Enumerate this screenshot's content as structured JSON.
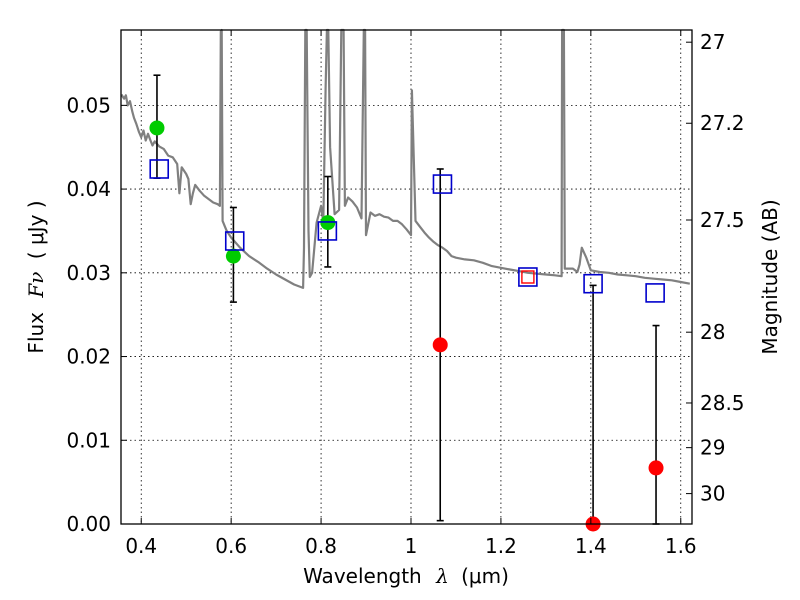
{
  "chart_data": {
    "type": "scatter",
    "xlabel_text": "Wavelength",
    "xlabel_symbol": "λ",
    "xlabel_unit": "(μm)",
    "ylabel_text": "Flux",
    "ylabel_symbol": "Fν",
    "ylabel_unit": "( μJy )",
    "y2label": "Magnitude (AB)",
    "xlim": [
      0.355,
      1.625
    ],
    "ylim": [
      0.0,
      0.059
    ],
    "x_ticks": [
      0.4,
      0.6,
      0.8,
      1.0,
      1.2,
      1.4,
      1.6
    ],
    "x_tick_labels": [
      "0.4",
      "0.6",
      "0.8",
      "1",
      "1.2",
      "1.4",
      "1.6"
    ],
    "y_ticks": [
      0.0,
      0.01,
      0.02,
      0.03,
      0.04,
      0.05
    ],
    "y_tick_labels": [
      "0.00",
      "0.01",
      "0.02",
      "0.03",
      "0.04",
      "0.05"
    ],
    "mag_ticks": [
      27,
      27.2,
      27.5,
      28,
      28.5,
      29,
      30
    ],
    "mag_tick_labels": [
      "27",
      "27.2",
      "27.5",
      "28",
      "28.5",
      "29",
      "30"
    ],
    "colors": {
      "model": "#808080",
      "detected": "#00cc00",
      "upper_limit": "#ff0000",
      "model_photometry": "#0000cc",
      "errorbar": "#000000"
    },
    "series": [
      {
        "name": "model_sed",
        "style": "line",
        "points": [
          [
            0.356,
            0.0513
          ],
          [
            0.362,
            0.0508
          ],
          [
            0.366,
            0.0512
          ],
          [
            0.37,
            0.05
          ],
          [
            0.375,
            0.0505
          ],
          [
            0.38,
            0.0493
          ],
          [
            0.384,
            0.0485
          ],
          [
            0.389,
            0.0478
          ],
          [
            0.395,
            0.0468
          ],
          [
            0.4,
            0.0462
          ],
          [
            0.405,
            0.047
          ],
          [
            0.41,
            0.0458
          ],
          [
            0.415,
            0.0466
          ],
          [
            0.42,
            0.0459
          ],
          [
            0.425,
            0.0452
          ],
          [
            0.43,
            0.0457
          ],
          [
            0.44,
            0.0451
          ],
          [
            0.45,
            0.0448
          ],
          [
            0.46,
            0.044
          ],
          [
            0.47,
            0.0438
          ],
          [
            0.48,
            0.043
          ],
          [
            0.485,
            0.0395
          ],
          [
            0.49,
            0.0426
          ],
          [
            0.5,
            0.0418
          ],
          [
            0.505,
            0.0412
          ],
          [
            0.51,
            0.0382
          ],
          [
            0.515,
            0.0395
          ],
          [
            0.52,
            0.0405
          ],
          [
            0.53,
            0.0398
          ],
          [
            0.54,
            0.0392
          ],
          [
            0.55,
            0.0388
          ],
          [
            0.56,
            0.0384
          ],
          [
            0.57,
            0.0382
          ],
          [
            0.575,
            0.038
          ],
          [
            0.577,
            0.0588
          ],
          [
            0.579,
            0.059
          ],
          [
            0.581,
            0.0362
          ],
          [
            0.59,
            0.035
          ],
          [
            0.6,
            0.0342
          ],
          [
            0.62,
            0.033
          ],
          [
            0.64,
            0.032
          ],
          [
            0.66,
            0.0313
          ],
          [
            0.68,
            0.0305
          ],
          [
            0.7,
            0.0298
          ],
          [
            0.72,
            0.0292
          ],
          [
            0.74,
            0.0286
          ],
          [
            0.76,
            0.0282
          ],
          [
            0.762,
            0.033
          ],
          [
            0.765,
            0.059
          ],
          [
            0.768,
            0.059
          ],
          [
            0.772,
            0.035
          ],
          [
            0.775,
            0.0295
          ],
          [
            0.78,
            0.03
          ],
          [
            0.79,
            0.036
          ],
          [
            0.8,
            0.038
          ],
          [
            0.805,
            0.036
          ],
          [
            0.81,
            0.052
          ],
          [
            0.813,
            0.059
          ],
          [
            0.816,
            0.059
          ],
          [
            0.82,
            0.045
          ],
          [
            0.83,
            0.037
          ],
          [
            0.84,
            0.0375
          ],
          [
            0.845,
            0.059
          ],
          [
            0.85,
            0.059
          ],
          [
            0.853,
            0.038
          ],
          [
            0.86,
            0.039
          ],
          [
            0.87,
            0.0385
          ],
          [
            0.88,
            0.0378
          ],
          [
            0.89,
            0.0365
          ],
          [
            0.895,
            0.059
          ],
          [
            0.898,
            0.059
          ],
          [
            0.9,
            0.0345
          ],
          [
            0.91,
            0.0372
          ],
          [
            0.92,
            0.0368
          ],
          [
            0.93,
            0.037
          ],
          [
            0.94,
            0.0367
          ],
          [
            0.95,
            0.0366
          ],
          [
            0.96,
            0.0362
          ],
          [
            0.97,
            0.0362
          ],
          [
            0.98,
            0.0358
          ],
          [
            0.99,
            0.0352
          ],
          [
            1.0,
            0.0345
          ],
          [
            1.002,
            0.0518
          ],
          [
            1.006,
            0.044
          ],
          [
            1.01,
            0.0362
          ],
          [
            1.02,
            0.0355
          ],
          [
            1.03,
            0.0348
          ],
          [
            1.04,
            0.0342
          ],
          [
            1.05,
            0.0337
          ],
          [
            1.06,
            0.0333
          ],
          [
            1.07,
            0.033
          ],
          [
            1.08,
            0.0326
          ],
          [
            1.09,
            0.032
          ],
          [
            1.1,
            0.0318
          ],
          [
            1.12,
            0.0316
          ],
          [
            1.14,
            0.0315
          ],
          [
            1.16,
            0.0312
          ],
          [
            1.18,
            0.0308
          ],
          [
            1.2,
            0.0306
          ],
          [
            1.22,
            0.0304
          ],
          [
            1.24,
            0.0302
          ],
          [
            1.26,
            0.03
          ],
          [
            1.28,
            0.0299
          ],
          [
            1.3,
            0.0298
          ],
          [
            1.32,
            0.0297
          ],
          [
            1.335,
            0.0296
          ],
          [
            1.336,
            0.059
          ],
          [
            1.34,
            0.059
          ],
          [
            1.342,
            0.0305
          ],
          [
            1.36,
            0.0305
          ],
          [
            1.37,
            0.0301
          ],
          [
            1.375,
            0.031
          ],
          [
            1.38,
            0.033
          ],
          [
            1.39,
            0.0318
          ],
          [
            1.4,
            0.0303
          ],
          [
            1.42,
            0.0301
          ],
          [
            1.44,
            0.03
          ],
          [
            1.46,
            0.0298
          ],
          [
            1.48,
            0.0297
          ],
          [
            1.5,
            0.0296
          ],
          [
            1.52,
            0.0294
          ],
          [
            1.54,
            0.0293
          ],
          [
            1.56,
            0.0292
          ],
          [
            1.58,
            0.0291
          ],
          [
            1.6,
            0.0289
          ],
          [
            1.62,
            0.0287
          ]
        ]
      },
      {
        "name": "detections",
        "style": "filled_circle",
        "color": "#00cc00",
        "points": [
          {
            "x": 0.435,
            "y": 0.0473,
            "err_lo": 0.006,
            "err_hi": 0.0063
          },
          {
            "x": 0.605,
            "y": 0.032,
            "err_lo": 0.0055,
            "err_hi": 0.0058
          },
          {
            "x": 0.815,
            "y": 0.036,
            "err_lo": 0.0053,
            "err_hi": 0.0055
          }
        ]
      },
      {
        "name": "upper_limits",
        "style": "filled_circle",
        "color": "#ff0000",
        "points": [
          {
            "x": 1.065,
            "y": 0.0214,
            "err_lo": 0.021,
            "err_hi": 0.021
          },
          {
            "x": 1.405,
            "y": 0.0,
            "err_lo": 0.0,
            "err_hi": 0.0285
          },
          {
            "x": 1.545,
            "y": 0.0067,
            "err_lo": 0.0067,
            "err_hi": 0.017
          }
        ]
      },
      {
        "name": "model_photometry",
        "style": "open_square",
        "color": "#0000cc",
        "points": [
          {
            "x": 0.44,
            "y": 0.0424
          },
          {
            "x": 0.608,
            "y": 0.0338
          },
          {
            "x": 0.814,
            "y": 0.035
          },
          {
            "x": 1.07,
            "y": 0.0406
          },
          {
            "x": 1.26,
            "y": 0.0295
          },
          {
            "x": 1.405,
            "y": 0.0287
          },
          {
            "x": 1.543,
            "y": 0.0276
          }
        ]
      },
      {
        "name": "upper_limit_square",
        "style": "small_open_square",
        "color": "#ff0000",
        "points": [
          {
            "x": 1.26,
            "y": 0.0295
          }
        ]
      }
    ]
  }
}
